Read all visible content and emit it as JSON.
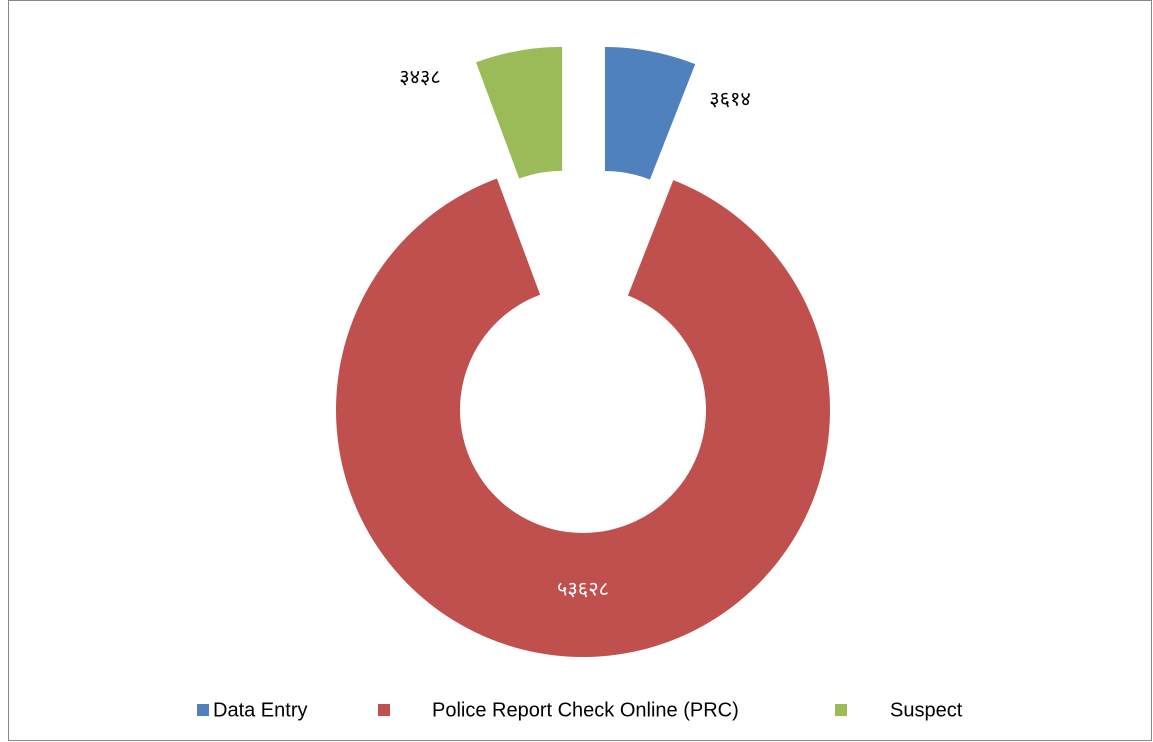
{
  "chart_data": {
    "type": "donut",
    "categories": [
      "Data Entry",
      "Police Report Check Online (PRC)",
      "Suspect"
    ],
    "values": [
      3614,
      53628,
      3438
    ],
    "value_labels": [
      "३६१४",
      "५३६२८",
      "३४३८"
    ],
    "colors": [
      "#4f81bd",
      "#c0504d",
      "#9bbb59"
    ],
    "legend": "bottom"
  }
}
